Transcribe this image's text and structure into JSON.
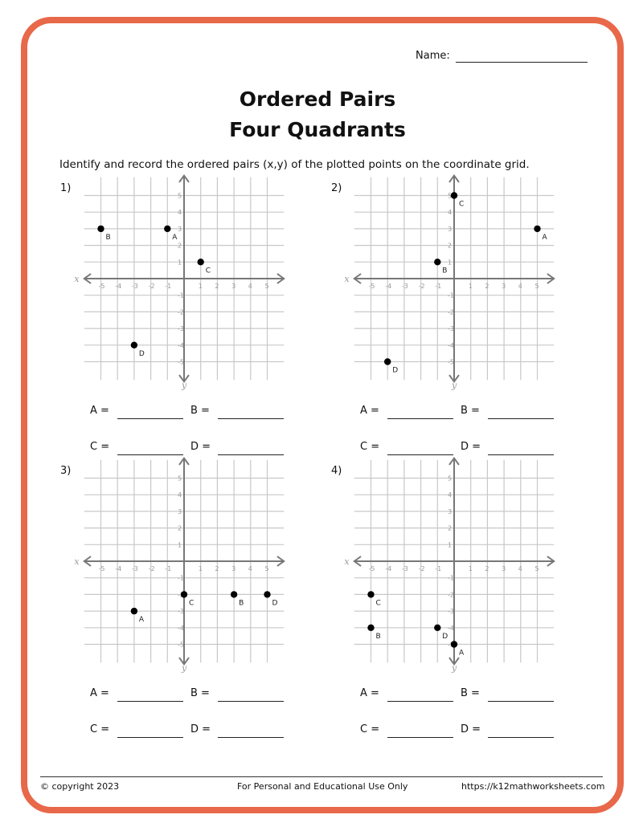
{
  "header": {
    "name_label": "Name:",
    "title_line1": "Ordered Pairs",
    "title_line2": "Four Quadrants",
    "instructions": "Identify and record the ordered pairs (x,y) of the plotted points on the coordinate grid."
  },
  "chart_data": [
    {
      "type": "scatter",
      "label": "1)",
      "xlabel": "x",
      "ylabel": "y",
      "xlim": [
        -6,
        6
      ],
      "ylim": [
        -6,
        6
      ],
      "ticks": [
        -5,
        -4,
        -3,
        -2,
        -1,
        1,
        2,
        3,
        4,
        5
      ],
      "grid": true,
      "points": [
        {
          "name": "A",
          "x": -1,
          "y": 3
        },
        {
          "name": "B",
          "x": -5,
          "y": 3
        },
        {
          "name": "C",
          "x": 1,
          "y": 1
        },
        {
          "name": "D",
          "x": -3,
          "y": -4
        }
      ]
    },
    {
      "type": "scatter",
      "label": "2)",
      "xlabel": "x",
      "ylabel": "y",
      "xlim": [
        -6,
        6
      ],
      "ylim": [
        -6,
        6
      ],
      "ticks": [
        -5,
        -4,
        -3,
        -2,
        -1,
        1,
        2,
        3,
        4,
        5
      ],
      "grid": true,
      "points": [
        {
          "name": "A",
          "x": 5,
          "y": 3
        },
        {
          "name": "B",
          "x": -1,
          "y": 1
        },
        {
          "name": "C",
          "x": 0,
          "y": 5
        },
        {
          "name": "D",
          "x": -4,
          "y": -5
        }
      ]
    },
    {
      "type": "scatter",
      "label": "3)",
      "xlabel": "x",
      "ylabel": "y",
      "xlim": [
        -6,
        6
      ],
      "ylim": [
        -6,
        6
      ],
      "ticks": [
        -5,
        -4,
        -3,
        -2,
        -1,
        1,
        2,
        3,
        4,
        5
      ],
      "grid": true,
      "points": [
        {
          "name": "A",
          "x": -3,
          "y": -3
        },
        {
          "name": "B",
          "x": 3,
          "y": -2
        },
        {
          "name": "C",
          "x": 0,
          "y": -2
        },
        {
          "name": "D",
          "x": 5,
          "y": -2
        }
      ]
    },
    {
      "type": "scatter",
      "label": "4)",
      "xlabel": "x",
      "ylabel": "y",
      "xlim": [
        -6,
        6
      ],
      "ylim": [
        -6,
        6
      ],
      "ticks": [
        -5,
        -4,
        -3,
        -2,
        -1,
        1,
        2,
        3,
        4,
        5
      ],
      "grid": true,
      "points": [
        {
          "name": "A",
          "x": 0,
          "y": -5
        },
        {
          "name": "B",
          "x": -5,
          "y": -4
        },
        {
          "name": "C",
          "x": -5,
          "y": -2
        },
        {
          "name": "D",
          "x": -1,
          "y": -4
        }
      ]
    }
  ],
  "answers": {
    "a": "A =",
    "b": "B =",
    "c": "C =",
    "d": "D ="
  },
  "footer": {
    "copyright": "© copyright 2023",
    "usage": "For Personal and Educational Use Only",
    "url": "https://k12mathworksheets.com"
  },
  "colors": {
    "border": "#e8684a",
    "grid": "#c8c8c8",
    "axis": "#777777",
    "point": "#000000"
  }
}
